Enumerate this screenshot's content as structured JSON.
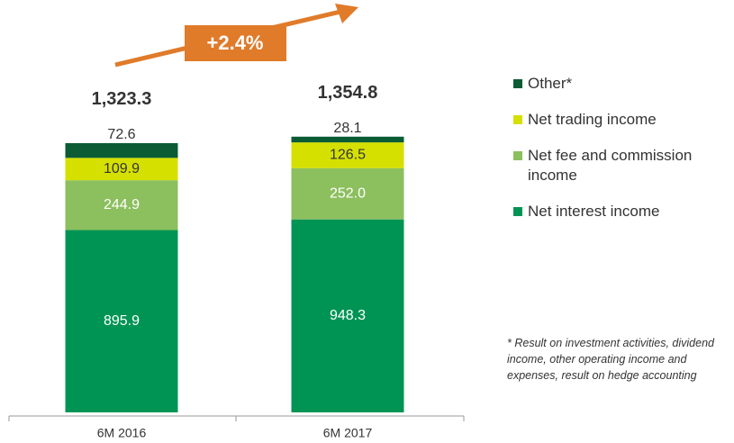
{
  "chart_data": {
    "type": "stacked-bar",
    "categories": [
      "6M 2016",
      "6M 2017"
    ],
    "series": [
      {
        "name": "Net interest income",
        "color": "#009454",
        "values": [
          895.9,
          948.3
        ],
        "value_labels": [
          "895.9",
          "948.3"
        ]
      },
      {
        "name": "Net fee and commission income",
        "color": "#8cbf5e",
        "values": [
          244.9,
          252.0
        ],
        "value_labels": [
          "244.9",
          "252.0"
        ]
      },
      {
        "name": "Net trading income",
        "color": "#d5e000",
        "values": [
          109.9,
          126.5
        ],
        "value_labels": [
          "109.9",
          "126.5"
        ]
      },
      {
        "name": "Other*",
        "color": "#0b5c35",
        "values": [
          72.6,
          28.1
        ],
        "value_labels": [
          "72.6",
          "28.1"
        ]
      }
    ],
    "totals": [
      1323.3,
      1354.8
    ],
    "total_labels": [
      "1,323.3",
      "1,354.8"
    ],
    "annotation": "+2.4%",
    "footnote": "* Result on investment activities, dividend income, other operating income and expenses, result on hedge accounting"
  }
}
